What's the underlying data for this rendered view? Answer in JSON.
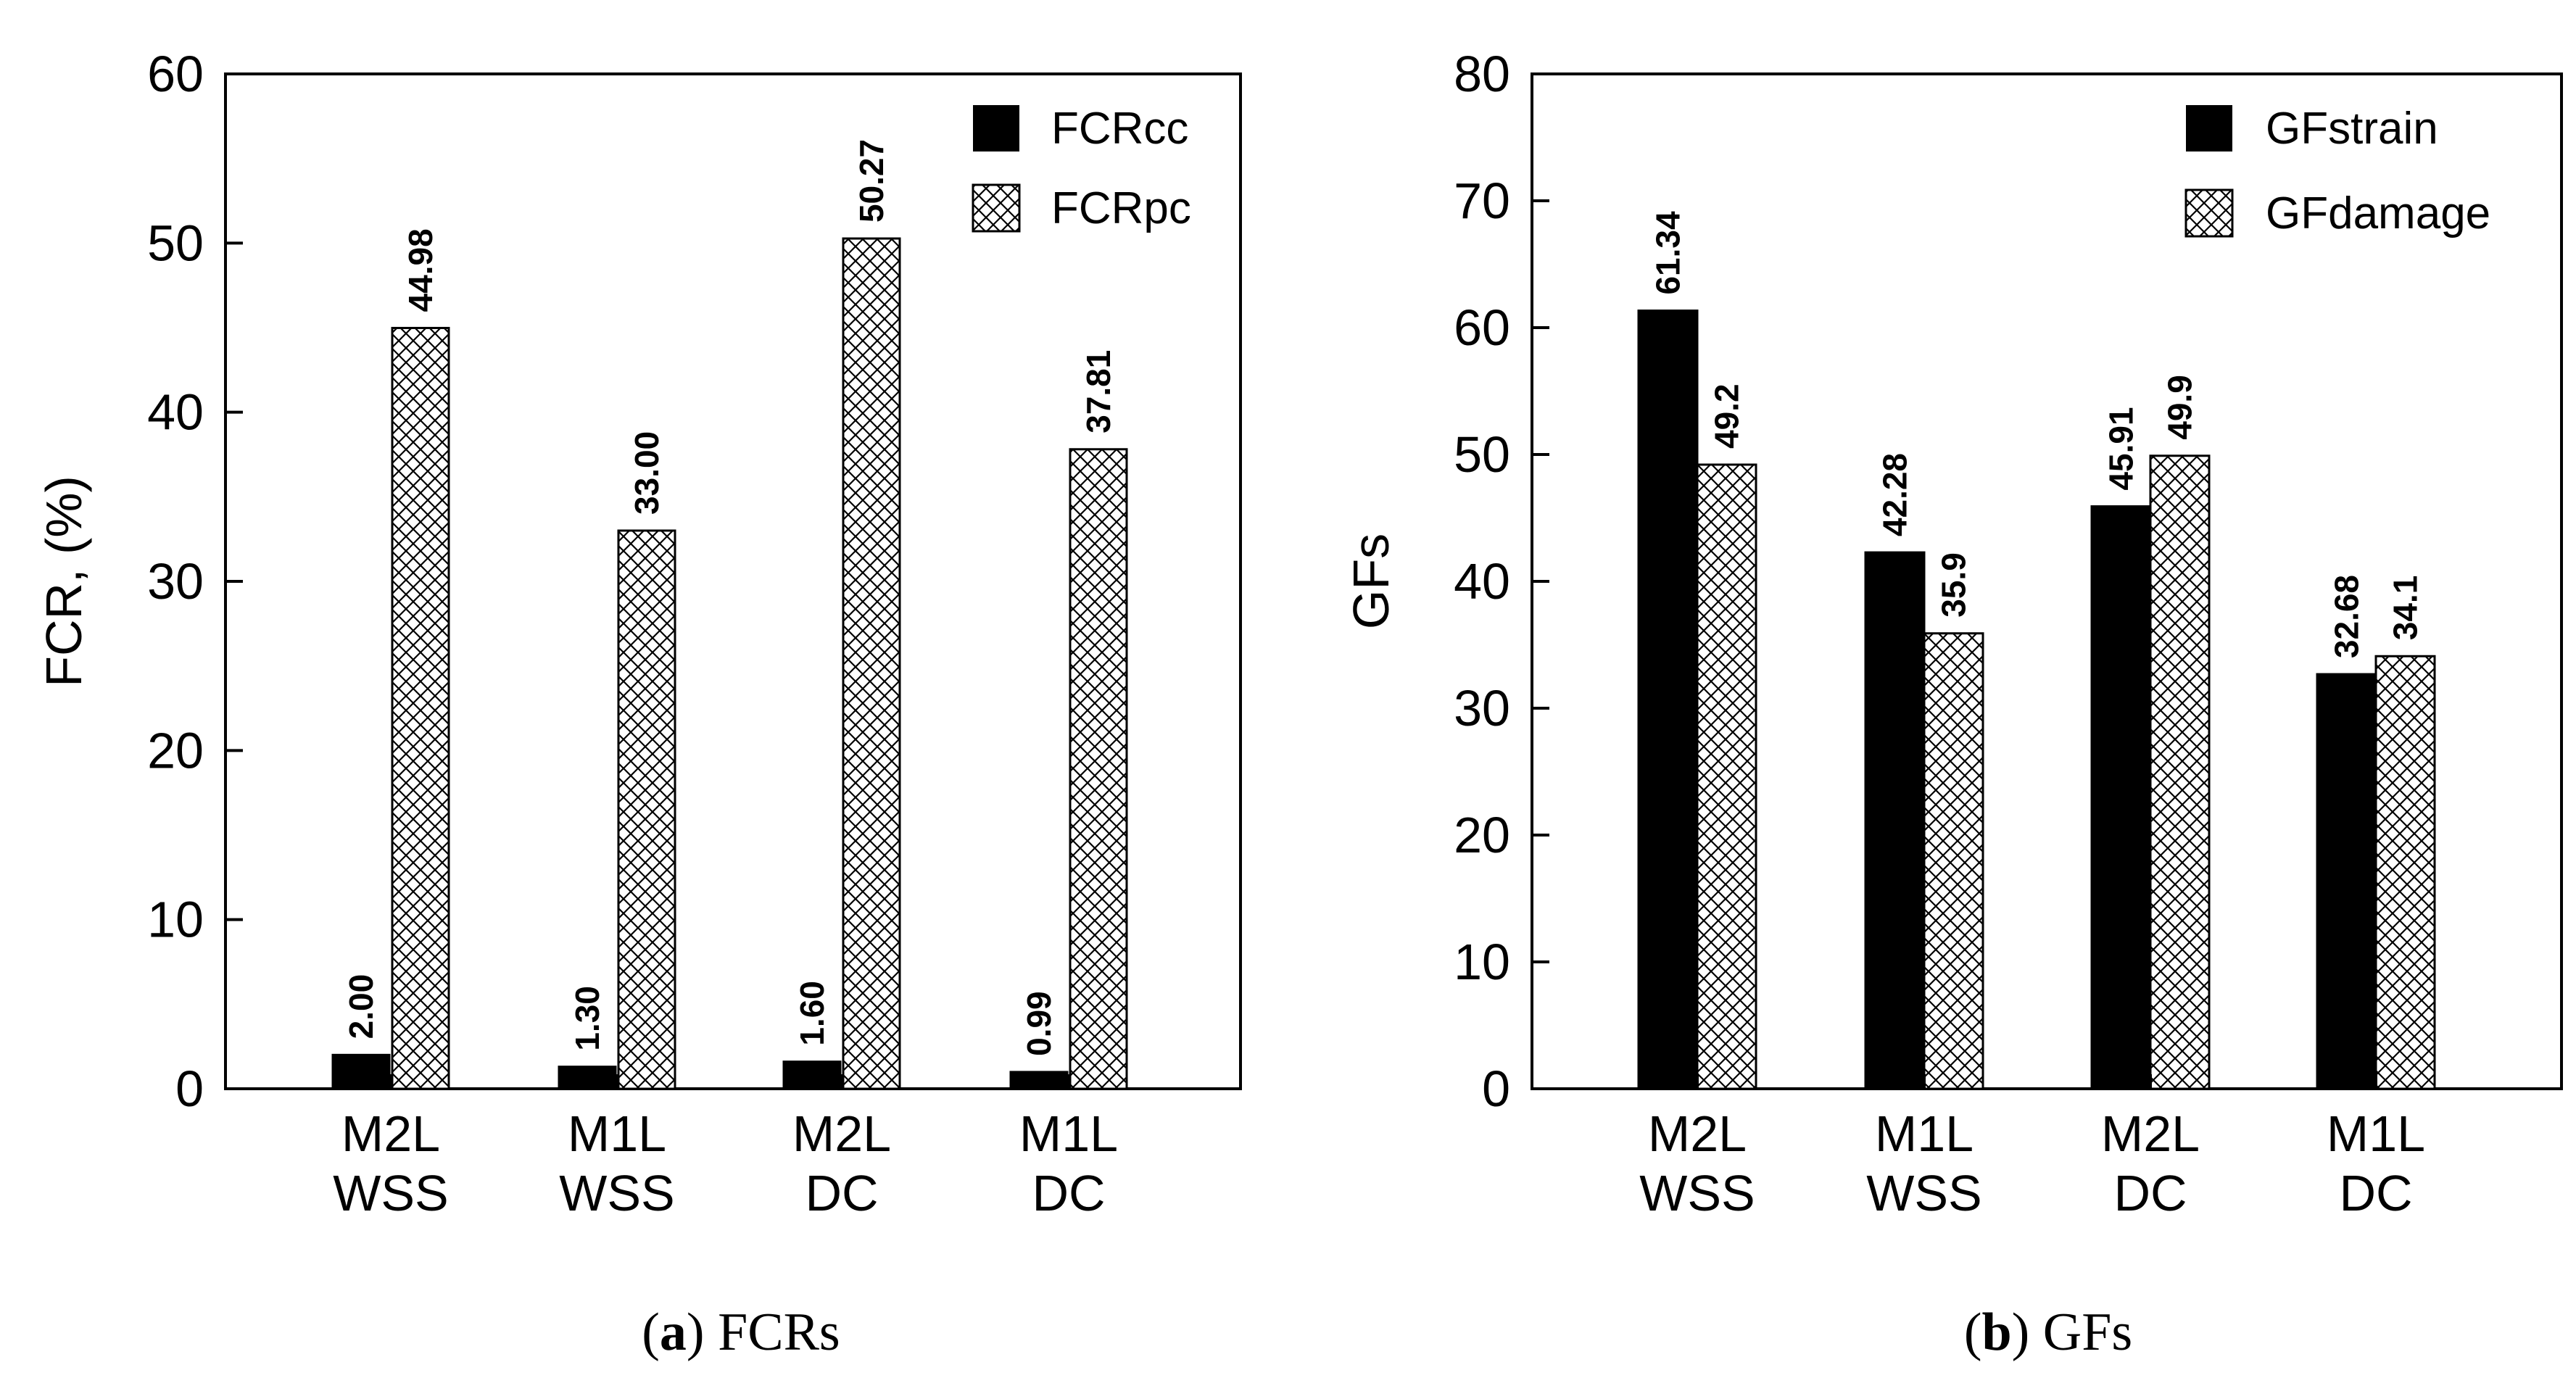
{
  "chart_data": [
    {
      "type": "bar",
      "panel_letter": "a",
      "caption": "FCRs",
      "ylabel": "FCR, (%)",
      "xlabel": "",
      "ylim": [
        0,
        60
      ],
      "yticks": [
        "0",
        "10",
        "20",
        "30",
        "40",
        "50",
        "60"
      ],
      "categories": [
        [
          "M2L",
          "WSS"
        ],
        [
          "M1L",
          "WSS"
        ],
        [
          "M2L",
          "DC"
        ],
        [
          "M1L",
          "DC"
        ]
      ],
      "legend_position": "top-right",
      "series": [
        {
          "name": "FCRcc",
          "fill": "solid",
          "values": [
            2.0,
            1.3,
            1.6,
            0.99
          ],
          "labels": [
            "2.00",
            "1.30",
            "1.60",
            "0.99"
          ]
        },
        {
          "name": "FCRpc",
          "fill": "crosshatch",
          "values": [
            44.98,
            33.0,
            50.27,
            37.81
          ],
          "labels": [
            "44.98",
            "33.00",
            "50.27",
            "37.81"
          ]
        }
      ]
    },
    {
      "type": "bar",
      "panel_letter": "b",
      "caption": "GFs",
      "ylabel": "GFs",
      "xlabel": "",
      "ylim": [
        0,
        80
      ],
      "yticks": [
        "0",
        "10",
        "20",
        "30",
        "40",
        "50",
        "60",
        "70",
        "80"
      ],
      "categories": [
        [
          "M2L",
          "WSS"
        ],
        [
          "M1L",
          "WSS"
        ],
        [
          "M2L",
          "DC"
        ],
        [
          "M1L",
          "DC"
        ]
      ],
      "legend_position": "top-right",
      "series": [
        {
          "name": "GFstrain",
          "fill": "solid",
          "values": [
            61.34,
            42.28,
            45.91,
            32.68
          ],
          "labels": [
            "61.34",
            "42.28",
            "45.91",
            "32.68"
          ]
        },
        {
          "name": "GFdamage",
          "fill": "crosshatch",
          "values": [
            49.2,
            35.9,
            49.9,
            34.1
          ],
          "labels": [
            "49.2",
            "35.9",
            "49.9",
            "34.1"
          ]
        }
      ]
    }
  ],
  "colors": {
    "solid_bar": "#000000",
    "hatch_line": "#000000",
    "background": "#ffffff"
  }
}
